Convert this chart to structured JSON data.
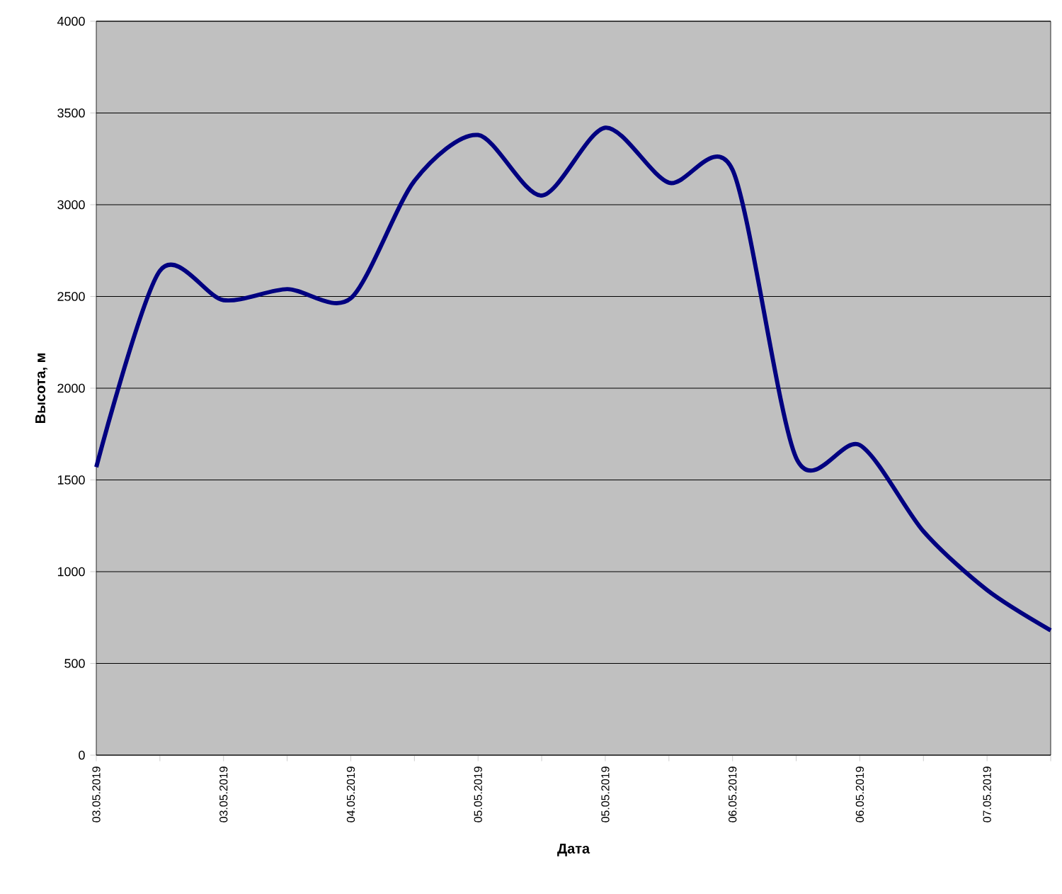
{
  "chart_data": {
    "type": "line",
    "xlabel": "Дата",
    "ylabel": "Высота, м",
    "categories": [
      "03.05.2019",
      null,
      "03.05.2019",
      null,
      "04.05.2019",
      null,
      "05.05.2019",
      null,
      "05.05.2019",
      null,
      "06.05.2019",
      null,
      "06.05.2019",
      null,
      "07.05.2019",
      null
    ],
    "values": [
      1570,
      2640,
      2480,
      2540,
      2490,
      3130,
      3380,
      3050,
      3420,
      3120,
      3190,
      1620,
      1690,
      1220,
      900,
      680
    ],
    "color": "#000080",
    "ylim": [
      0,
      4000
    ],
    "yticks": [
      0,
      500,
      1000,
      1500,
      2000,
      2500,
      3000,
      3500,
      4000
    ],
    "grid": "y"
  }
}
